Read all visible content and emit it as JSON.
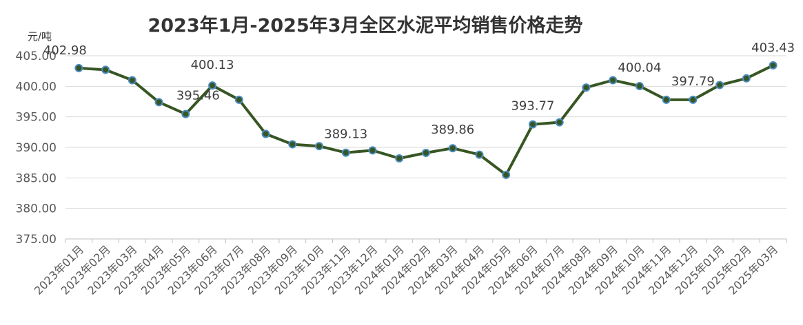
{
  "chart_data": {
    "type": "line",
    "title": "2023年1月-2025年3月全区水泥平均销售价格走势",
    "ylabel": "元/吨",
    "xlabel": "",
    "ylim": [
      375,
      405
    ],
    "yticks": [
      "375.00",
      "380.00",
      "385.00",
      "390.00",
      "395.00",
      "400.00",
      "405.00"
    ],
    "grid": true,
    "categories": [
      "2023年01月",
      "2023年02月",
      "2023年03月",
      "2023年04月",
      "2023年05月",
      "2023年06月",
      "2023年07月",
      "2023年08月",
      "2023年09月",
      "2023年10月",
      "2023年11月",
      "2023年12月",
      "2024年01月",
      "2024年02月",
      "2024年03月",
      "2024年04月",
      "2024年05月",
      "2024年06月",
      "2024年07月",
      "2024年08月",
      "2024年09月",
      "2024年10月",
      "2024年11月",
      "2024年12月",
      "2025年01月",
      "2025年02月",
      "2025年03月"
    ],
    "series": [
      {
        "values": [
          402.98,
          402.7,
          401.0,
          397.4,
          395.46,
          400.13,
          397.8,
          392.2,
          390.5,
          390.2,
          389.13,
          389.5,
          388.2,
          389.1,
          389.86,
          388.8,
          385.5,
          393.77,
          394.1,
          399.8,
          401.0,
          400.04,
          397.79,
          397.79,
          400.2,
          401.3,
          403.43
        ],
        "line_color": "#375623",
        "marker_color": "#4a8cc2"
      }
    ],
    "data_labels": [
      {
        "index": 0,
        "text": "402.98"
      },
      {
        "index": 4,
        "text": "395.46"
      },
      {
        "index": 5,
        "text": "400.13"
      },
      {
        "index": 10,
        "text": "389.13"
      },
      {
        "index": 14,
        "text": "389.86"
      },
      {
        "index": 17,
        "text": "393.77"
      },
      {
        "index": 21,
        "text": "400.04"
      },
      {
        "index": 23,
        "text": "397.79"
      },
      {
        "index": 26,
        "text": "403.43"
      }
    ]
  }
}
